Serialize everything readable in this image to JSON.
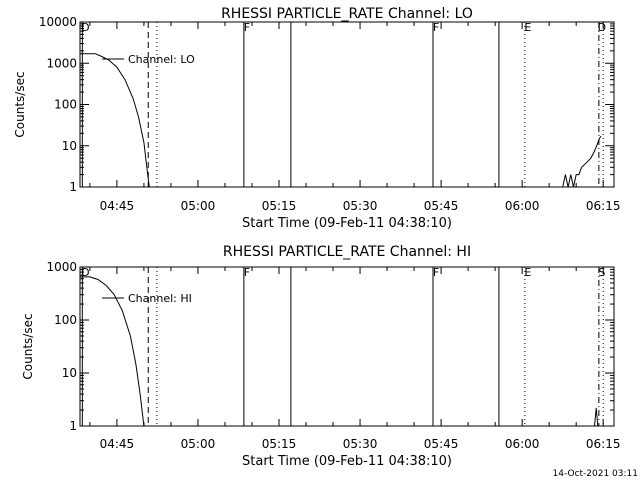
{
  "footer": {
    "timestamp": "14-Oct-2021 03:11"
  },
  "chart_data": [
    {
      "type": "line",
      "title": "RHESSI PARTICLE_RATE Channel: LO",
      "xlabel": "Start Time (09-Feb-11 04:38:10)",
      "ylabel": "Counts/sec",
      "yscale": "log",
      "ylim": [
        1,
        10000
      ],
      "xlim_min": [
        38.17,
        137.0
      ],
      "x_unit": "minutes after 04:00 UT",
      "x_ticks": [
        {
          "t": 45,
          "label": "04:45"
        },
        {
          "t": 60,
          "label": "05:00"
        },
        {
          "t": 75,
          "label": "05:15"
        },
        {
          "t": 90,
          "label": "05:30"
        },
        {
          "t": 105,
          "label": "05:45"
        },
        {
          "t": 120,
          "label": "06:00"
        },
        {
          "t": 135,
          "label": "06:15"
        }
      ],
      "y_ticks": [
        {
          "v": 1,
          "label": "1"
        },
        {
          "v": 10,
          "label": "10"
        },
        {
          "v": 100,
          "label": "100"
        },
        {
          "v": 1000,
          "label": "1000"
        },
        {
          "v": 10000,
          "label": "10000"
        }
      ],
      "legend": "Channel: LO",
      "series": [
        {
          "name": "Channel: LO",
          "segments": [
            [
              [
                38.2,
                1700
              ],
              [
                41.0,
                1700
              ],
              [
                42.0,
                1500
              ],
              [
                43.5,
                1200
              ],
              [
                45.0,
                800
              ],
              [
                46.5,
                400
              ],
              [
                48.0,
                140
              ],
              [
                49.0,
                50
              ],
              [
                50.0,
                12
              ],
              [
                50.7,
                2
              ],
              [
                51.0,
                1
              ]
            ],
            [
              [
                127.5,
                1
              ],
              [
                128.0,
                2
              ],
              [
                128.5,
                1
              ],
              [
                129.0,
                2
              ],
              [
                129.5,
                1
              ],
              [
                130.0,
                2
              ],
              [
                130.5,
                2
              ],
              [
                131.0,
                3
              ],
              [
                132.0,
                4
              ],
              [
                132.7,
                5
              ],
              [
                133.3,
                7
              ],
              [
                133.8,
                10
              ],
              [
                134.3,
                15
              ],
              [
                134.6,
                17
              ]
            ]
          ]
        }
      ],
      "vlines": [
        {
          "t": 38.6,
          "style": "solid",
          "marker": "D"
        },
        {
          "t": 50.8,
          "style": "dashed",
          "marker": ""
        },
        {
          "t": 52.4,
          "style": "dotted",
          "marker": ""
        },
        {
          "t": 68.5,
          "style": "solid",
          "marker": "F"
        },
        {
          "t": 77.2,
          "style": "solid",
          "marker": ""
        },
        {
          "t": 103.5,
          "style": "solid",
          "marker": "F"
        },
        {
          "t": 115.7,
          "style": "solid",
          "marker": ""
        },
        {
          "t": 120.5,
          "style": "dotted",
          "marker": "E"
        },
        {
          "t": 134.2,
          "style": "dashdot",
          "marker": "D"
        },
        {
          "t": 135.0,
          "style": "dotted",
          "marker": ""
        }
      ]
    },
    {
      "type": "line",
      "title": "RHESSI PARTICLE_RATE Channel: HI",
      "xlabel": "Start Time (09-Feb-11 04:38:10)",
      "ylabel": "Counts/sec",
      "yscale": "log",
      "ylim": [
        1,
        1000
      ],
      "xlim_min": [
        38.17,
        137.0
      ],
      "x_unit": "minutes after 04:00 UT",
      "x_ticks": [
        {
          "t": 45,
          "label": "04:45"
        },
        {
          "t": 60,
          "label": "05:00"
        },
        {
          "t": 75,
          "label": "05:15"
        },
        {
          "t": 90,
          "label": "05:30"
        },
        {
          "t": 105,
          "label": "05:45"
        },
        {
          "t": 120,
          "label": "06:00"
        },
        {
          "t": 135,
          "label": "06:15"
        }
      ],
      "y_ticks": [
        {
          "v": 1,
          "label": "1"
        },
        {
          "v": 10,
          "label": "10"
        },
        {
          "v": 100,
          "label": "100"
        },
        {
          "v": 1000,
          "label": "1000"
        }
      ],
      "legend": "Channel: HI",
      "series": [
        {
          "name": "Channel: HI",
          "segments": [
            [
              [
                38.2,
                650
              ],
              [
                40.0,
                650
              ],
              [
                41.5,
                580
              ],
              [
                43.0,
                450
              ],
              [
                44.5,
                300
              ],
              [
                46.0,
                150
              ],
              [
                47.5,
                50
              ],
              [
                48.5,
                15
              ],
              [
                49.3,
                4
              ],
              [
                49.8,
                1.5
              ],
              [
                50.0,
                1
              ]
            ],
            [
              [
                133.4,
                1
              ],
              [
                133.7,
                2.2
              ],
              [
                134.0,
                1
              ]
            ]
          ]
        }
      ],
      "vlines": [
        {
          "t": 38.6,
          "style": "solid",
          "marker": "D"
        },
        {
          "t": 50.8,
          "style": "dashed",
          "marker": ""
        },
        {
          "t": 52.4,
          "style": "dotted",
          "marker": ""
        },
        {
          "t": 68.5,
          "style": "solid",
          "marker": "F"
        },
        {
          "t": 77.2,
          "style": "solid",
          "marker": ""
        },
        {
          "t": 103.5,
          "style": "solid",
          "marker": "F"
        },
        {
          "t": 115.7,
          "style": "solid",
          "marker": ""
        },
        {
          "t": 120.5,
          "style": "dotted",
          "marker": "E"
        },
        {
          "t": 134.2,
          "style": "dashdot",
          "marker": "S"
        },
        {
          "t": 135.0,
          "style": "dotted",
          "marker": ""
        }
      ]
    }
  ]
}
